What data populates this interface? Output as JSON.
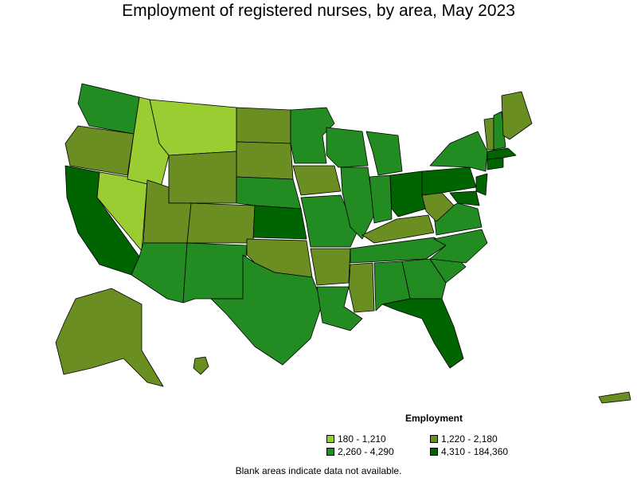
{
  "title": "Employment of registered nurses, by area, May 2023",
  "legend": {
    "title": "Employment",
    "items": [
      {
        "label": "180 - 1,210",
        "color": "#9acd32"
      },
      {
        "label": "1,220 - 2,180",
        "color": "#6b8e23"
      },
      {
        "label": "2,260 - 4,290",
        "color": "#228b22"
      },
      {
        "label": "4,310 - 184,360",
        "color": "#006400"
      }
    ]
  },
  "footnote": "Blank areas indicate data not available.",
  "map": {
    "regions": [
      {
        "name": "Washington",
        "class": 2
      },
      {
        "name": "Oregon",
        "class": 1
      },
      {
        "name": "California",
        "class": 3
      },
      {
        "name": "Nevada",
        "class": 0
      },
      {
        "name": "Idaho",
        "class": 0
      },
      {
        "name": "Montana",
        "class": 0
      },
      {
        "name": "Wyoming",
        "class": 1
      },
      {
        "name": "Utah",
        "class": 1
      },
      {
        "name": "Arizona",
        "class": 2
      },
      {
        "name": "Colorado",
        "class": 1
      },
      {
        "name": "New Mexico",
        "class": 2
      },
      {
        "name": "Texas",
        "class": 2
      },
      {
        "name": "Oklahoma",
        "class": 1
      },
      {
        "name": "Kansas",
        "class": 3
      },
      {
        "name": "Nebraska",
        "class": 2
      },
      {
        "name": "South Dakota",
        "class": 1
      },
      {
        "name": "North Dakota",
        "class": 1
      },
      {
        "name": "Minnesota",
        "class": 2
      },
      {
        "name": "Iowa",
        "class": 1
      },
      {
        "name": "Missouri",
        "class": 2
      },
      {
        "name": "Arkansas",
        "class": 1
      },
      {
        "name": "Louisiana",
        "class": 2
      },
      {
        "name": "Wisconsin",
        "class": 2
      },
      {
        "name": "Illinois",
        "class": 2
      },
      {
        "name": "Michigan",
        "class": 2
      },
      {
        "name": "Indiana",
        "class": 2
      },
      {
        "name": "Ohio",
        "class": 3
      },
      {
        "name": "Kentucky",
        "class": 1
      },
      {
        "name": "Tennessee",
        "class": 2
      },
      {
        "name": "Mississippi",
        "class": 1
      },
      {
        "name": "Alabama",
        "class": 2
      },
      {
        "name": "Georgia",
        "class": 2
      },
      {
        "name": "Florida",
        "class": 3
      },
      {
        "name": "South Carolina",
        "class": 2
      },
      {
        "name": "North Carolina",
        "class": 2
      },
      {
        "name": "Virginia",
        "class": 2
      },
      {
        "name": "West Virginia",
        "class": 1
      },
      {
        "name": "Pennsylvania",
        "class": 3
      },
      {
        "name": "New York",
        "class": 2
      },
      {
        "name": "Vermont",
        "class": 1
      },
      {
        "name": "New Hampshire",
        "class": 2
      },
      {
        "name": "Maine",
        "class": 1
      },
      {
        "name": "Massachusetts",
        "class": 3
      },
      {
        "name": "Connecticut",
        "class": 3
      },
      {
        "name": "New Jersey",
        "class": 3
      },
      {
        "name": "Maryland",
        "class": 3
      },
      {
        "name": "Alaska",
        "class": 1
      },
      {
        "name": "Hawaii",
        "class": 1
      },
      {
        "name": "Puerto Rico",
        "class": 1
      }
    ]
  }
}
